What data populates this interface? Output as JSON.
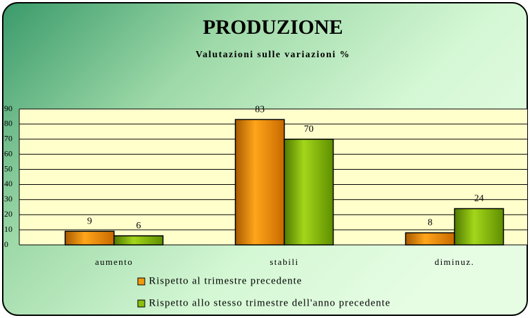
{
  "chart_data": {
    "type": "bar",
    "title": "PRODUZIONE",
    "subtitle": "Valutazioni sulle variazioni %",
    "categories": [
      "aumento",
      "stabili",
      "diminuz."
    ],
    "series": [
      {
        "name": "Rispetto al trimestre precedente",
        "color": "#f29a0e",
        "values": [
          9,
          83,
          8
        ]
      },
      {
        "name": "Rispetto allo stesso trimestre dell'anno precedente",
        "color": "#8cbf10",
        "values": [
          6,
          70,
          24
        ]
      }
    ],
    "ylim": [
      0,
      90
    ],
    "yticks": [
      0,
      10,
      20,
      30,
      40,
      50,
      60,
      70,
      80,
      90
    ],
    "grid": true,
    "legend": "bottom"
  }
}
